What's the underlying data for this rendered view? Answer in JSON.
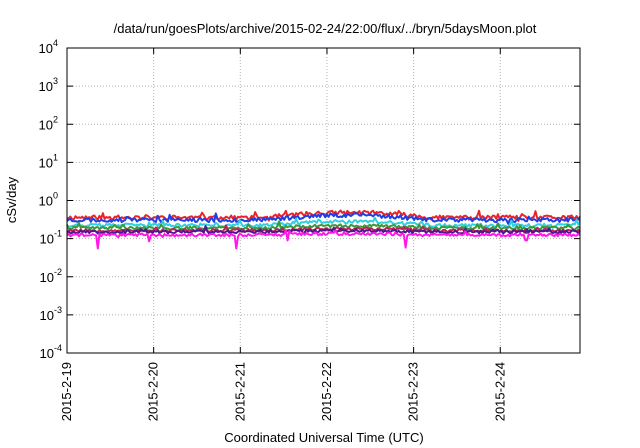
{
  "chart_data": {
    "type": "line",
    "title": "/data/run/goesPlots/archive/2015-02-24/22:00/flux/../bryn/5daysMoon.plot",
    "xlabel": "Coordinated Universal Time (UTC)",
    "ylabel": "cSv/day",
    "yscale": "log",
    "ylim": [
      0.0001,
      10000
    ],
    "xlim": [
      0,
      5.92
    ],
    "y_ticks": [
      {
        "base": "10",
        "exp": "4",
        "value": 10000
      },
      {
        "base": "10",
        "exp": "3",
        "value": 1000
      },
      {
        "base": "10",
        "exp": "2",
        "value": 100
      },
      {
        "base": "10",
        "exp": "1",
        "value": 10
      },
      {
        "base": "10",
        "exp": "0",
        "value": 1
      },
      {
        "base": "10",
        "exp": "-1",
        "value": 0.1
      },
      {
        "base": "10",
        "exp": "-2",
        "value": 0.01
      },
      {
        "base": "10",
        "exp": "-3",
        "value": 0.001
      },
      {
        "base": "10",
        "exp": "-4",
        "value": 0.0001
      }
    ],
    "x_ticks": [
      {
        "label": "2015-2-19",
        "value": 0
      },
      {
        "label": "2015-2-20",
        "value": 1
      },
      {
        "label": "2015-2-21",
        "value": 2
      },
      {
        "label": "2015-2-22",
        "value": 3
      },
      {
        "label": "2015-2-23",
        "value": 4
      },
      {
        "label": "2015-2-24",
        "value": 5
      }
    ],
    "grid": true,
    "legend": "none",
    "series": [
      {
        "color": "#e8242b",
        "base": 0.36,
        "hump": 1.35,
        "noise": 0.13,
        "seed": 11
      },
      {
        "color": "#1f3fe6",
        "base": 0.31,
        "hump": 1.35,
        "noise": 0.13,
        "seed": 23
      },
      {
        "color": "#2fd0e0",
        "base": 0.225,
        "hump": 1.25,
        "noise": 0.1,
        "seed": 37
      },
      {
        "color": "#3a9a3a",
        "base": 0.19,
        "hump": 1.15,
        "noise": 0.09,
        "seed": 41
      },
      {
        "color": "#c0205a",
        "base": 0.165,
        "hump": 1.12,
        "noise": 0.09,
        "seed": 53
      },
      {
        "color": "#4b1a8a",
        "base": 0.15,
        "hump": 1.1,
        "noise": 0.09,
        "seed": 67
      },
      {
        "color": "#ff18e8",
        "base": 0.125,
        "hump": 1.08,
        "noise": 0.09,
        "seed": 79,
        "spikes": [
          [
            0.35,
            0.055
          ],
          [
            0.95,
            0.085
          ],
          [
            1.96,
            0.055
          ],
          [
            2.55,
            0.09
          ],
          [
            3.9,
            0.058
          ],
          [
            5.3,
            0.09
          ]
        ]
      }
    ]
  }
}
